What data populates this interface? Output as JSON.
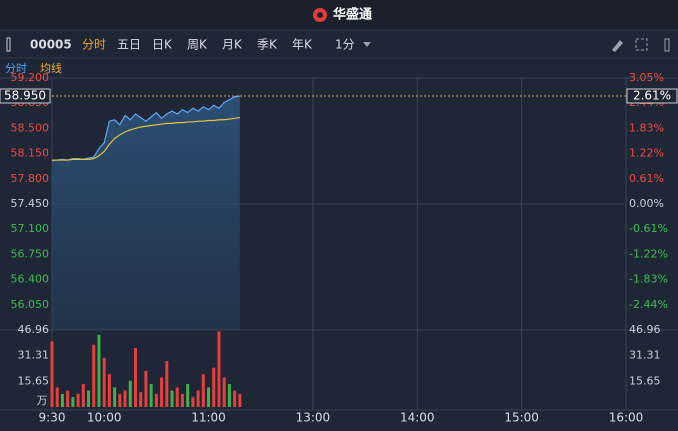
{
  "header": {
    "title": "华盛通"
  },
  "toolbar": {
    "code": "00005",
    "tabs": [
      "分时",
      "五日",
      "日K",
      "周K",
      "月K",
      "季K",
      "年K"
    ],
    "interval": "1分"
  },
  "legend_row": [
    "分时",
    "均线"
  ],
  "chart_data": {
    "type": "line",
    "x": [
      0,
      3,
      6,
      9,
      12,
      15,
      18,
      21,
      24,
      27,
      30,
      33,
      36,
      39,
      42,
      45,
      48,
      51,
      54,
      57,
      60,
      63,
      66,
      69,
      72,
      75,
      78,
      81,
      84,
      87,
      90,
      93,
      96,
      99,
      102,
      105,
      108
    ],
    "xlim": [
      0,
      330
    ],
    "xticks": [
      {
        "value": 0,
        "label": "9:30"
      },
      {
        "value": 30,
        "label": "10:00"
      },
      {
        "value": 90,
        "label": "11:00"
      },
      {
        "value": 150,
        "label": "13:00"
      },
      {
        "value": 210,
        "label": "14:00"
      },
      {
        "value": 270,
        "label": "15:00"
      },
      {
        "value": 330,
        "label": "16:00"
      }
    ],
    "series": [
      {
        "name": "分时",
        "color": "#5fa8f5",
        "values": [
          58.05,
          58.06,
          58.07,
          58.06,
          58.08,
          58.08,
          58.07,
          58.09,
          58.1,
          58.22,
          58.3,
          58.6,
          58.62,
          58.55,
          58.68,
          58.62,
          58.7,
          58.65,
          58.6,
          58.66,
          58.72,
          58.64,
          58.7,
          58.74,
          58.7,
          58.76,
          58.72,
          58.78,
          58.74,
          58.8,
          58.76,
          58.82,
          58.78,
          58.86,
          58.9,
          58.94,
          58.95
        ]
      },
      {
        "name": "均线",
        "color": "#e8c23a",
        "values": [
          58.06,
          58.06,
          58.06,
          58.06,
          58.07,
          58.07,
          58.07,
          58.07,
          58.08,
          58.12,
          58.18,
          58.28,
          58.36,
          58.41,
          58.45,
          58.48,
          58.5,
          58.52,
          58.53,
          58.54,
          58.55,
          58.56,
          58.57,
          58.57,
          58.58,
          58.58,
          58.59,
          58.59,
          58.6,
          58.6,
          58.61,
          58.61,
          58.62,
          58.62,
          58.63,
          58.64,
          58.65
        ]
      }
    ],
    "ylim": [
      55.7,
      59.2
    ],
    "yticks": [
      {
        "value": 59.2,
        "label": "59.200"
      },
      {
        "value": 58.85,
        "label": "58.850"
      },
      {
        "value": 58.5,
        "label": "58.500"
      },
      {
        "value": 58.15,
        "label": "58.150"
      },
      {
        "value": 57.8,
        "label": "57.800"
      },
      {
        "value": 57.45,
        "label": "57.450"
      },
      {
        "value": 57.1,
        "label": "57.100"
      },
      {
        "value": 56.75,
        "label": "56.750"
      },
      {
        "value": 56.4,
        "label": "56.400"
      },
      {
        "value": 56.05,
        "label": "56.050"
      }
    ],
    "y2lim": [
      -3.05,
      3.05
    ],
    "y2ticks": [
      {
        "value": 3.05,
        "label": "3.05%"
      },
      {
        "value": 2.44,
        "label": "2.44%"
      },
      {
        "value": 1.83,
        "label": "1.83%"
      },
      {
        "value": 1.22,
        "label": "1.22%"
      },
      {
        "value": 0.61,
        "label": "0.61%"
      },
      {
        "value": 0,
        "label": "0.00%"
      },
      {
        "value": -0.61,
        "label": "-0.61%"
      },
      {
        "value": -1.22,
        "label": "-1.22%"
      },
      {
        "value": -1.83,
        "label": "-1.83%"
      },
      {
        "value": -2.44,
        "label": "-2.44%"
      }
    ],
    "last_price": {
      "value": 58.95,
      "label": "58.950"
    },
    "last_change": {
      "value": 2.61,
      "label": "2.61%"
    },
    "volume": {
      "values": [
        40,
        12,
        8,
        10,
        6,
        8,
        14,
        10,
        38,
        44,
        30,
        20,
        12,
        8,
        10,
        16,
        36,
        9,
        22,
        14,
        8,
        18,
        28,
        10,
        12,
        8,
        14,
        6,
        10,
        20,
        12,
        24,
        46,
        18,
        14,
        10,
        8
      ],
      "colors": [
        "#e5403d",
        "#e5403d",
        "#3db24a",
        "#e5403d",
        "#3db24a",
        "#e5403d",
        "#e5403d",
        "#3db24a",
        "#e5403d",
        "#3db24a",
        "#e5403d",
        "#e5403d",
        "#3db24a",
        "#e5403d",
        "#e5403d",
        "#3db24a",
        "#e5403d",
        "#e5403d",
        "#e5403d",
        "#3db24a",
        "#e5403d",
        "#e5403d",
        "#e5403d",
        "#3db24a",
        "#e5403d",
        "#e5403d",
        "#3db24a",
        "#e5403d",
        "#e5403d",
        "#e5403d",
        "#3db24a",
        "#e5403d",
        "#e5403d",
        "#e5403d",
        "#3db24a",
        "#e5403d",
        "#e5403d"
      ],
      "ylim": [
        0,
        46.96
      ],
      "yticks": [
        46.96,
        31.31,
        15.65
      ],
      "unit": "万"
    }
  }
}
